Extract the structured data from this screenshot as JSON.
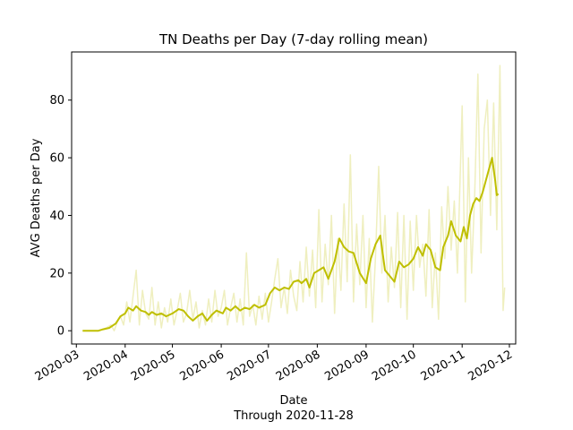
{
  "chart_data": {
    "type": "line",
    "title": "TN Deaths per Day (7-day rolling mean)",
    "xlabel": "Date",
    "xlabel_sub": "Through 2020-11-28",
    "ylabel": "AVG Deaths per Day",
    "xlim": [
      "2020-02-27",
      "2020-12-05"
    ],
    "ylim": [
      -4.6,
      96.7
    ],
    "grid": false,
    "x_ticks": [
      "2020-03",
      "2020-04",
      "2020-05",
      "2020-06",
      "2020-07",
      "2020-08",
      "2020-09",
      "2020-10",
      "2020-11",
      "2020-12"
    ],
    "y_ticks": [
      0,
      20,
      40,
      60,
      80
    ],
    "colors": {
      "daily": "#bfbf00",
      "rolling": "#bfbf00"
    },
    "series": [
      {
        "role": "daily",
        "opacity": 0.25,
        "points": [
          [
            "2020-03-05",
            0
          ],
          [
            "2020-03-10",
            0
          ],
          [
            "2020-03-15",
            0
          ],
          [
            "2020-03-20",
            1
          ],
          [
            "2020-03-23",
            2
          ],
          [
            "2020-03-25",
            0
          ],
          [
            "2020-03-27",
            3
          ],
          [
            "2020-03-29",
            5
          ],
          [
            "2020-03-31",
            2
          ],
          [
            "2020-04-02",
            10
          ],
          [
            "2020-04-04",
            3
          ],
          [
            "2020-04-06",
            12
          ],
          [
            "2020-04-08",
            21
          ],
          [
            "2020-04-10",
            2
          ],
          [
            "2020-04-12",
            14
          ],
          [
            "2020-04-14",
            6
          ],
          [
            "2020-04-16",
            4
          ],
          [
            "2020-04-18",
            15
          ],
          [
            "2020-04-20",
            2
          ],
          [
            "2020-04-22",
            10
          ],
          [
            "2020-04-24",
            1
          ],
          [
            "2020-04-26",
            8
          ],
          [
            "2020-04-28",
            3
          ],
          [
            "2020-04-30",
            11
          ],
          [
            "2020-05-02",
            2
          ],
          [
            "2020-05-04",
            7
          ],
          [
            "2020-05-06",
            13
          ],
          [
            "2020-05-08",
            3
          ],
          [
            "2020-05-10",
            6
          ],
          [
            "2020-05-12",
            14
          ],
          [
            "2020-05-14",
            4
          ],
          [
            "2020-05-16",
            10
          ],
          [
            "2020-05-18",
            1
          ],
          [
            "2020-05-20",
            7
          ],
          [
            "2020-05-22",
            2
          ],
          [
            "2020-05-24",
            11
          ],
          [
            "2020-05-26",
            3
          ],
          [
            "2020-05-28",
            14
          ],
          [
            "2020-05-30",
            5
          ],
          [
            "2020-06-01",
            8
          ],
          [
            "2020-06-03",
            14
          ],
          [
            "2020-06-05",
            2
          ],
          [
            "2020-06-07",
            8
          ],
          [
            "2020-06-09",
            13
          ],
          [
            "2020-06-11",
            3
          ],
          [
            "2020-06-13",
            11
          ],
          [
            "2020-06-15",
            2
          ],
          [
            "2020-06-17",
            27
          ],
          [
            "2020-06-19",
            5
          ],
          [
            "2020-06-21",
            9
          ],
          [
            "2020-06-23",
            2
          ],
          [
            "2020-06-25",
            12
          ],
          [
            "2020-06-27",
            4
          ],
          [
            "2020-06-29",
            13
          ],
          [
            "2020-07-01",
            3
          ],
          [
            "2020-07-03",
            10
          ],
          [
            "2020-07-05",
            18
          ],
          [
            "2020-07-07",
            25
          ],
          [
            "2020-07-09",
            8
          ],
          [
            "2020-07-11",
            15
          ],
          [
            "2020-07-13",
            6
          ],
          [
            "2020-07-15",
            21
          ],
          [
            "2020-07-17",
            12
          ],
          [
            "2020-07-19",
            7
          ],
          [
            "2020-07-21",
            24
          ],
          [
            "2020-07-23",
            10
          ],
          [
            "2020-07-25",
            29
          ],
          [
            "2020-07-27",
            12
          ],
          [
            "2020-07-29",
            28
          ],
          [
            "2020-07-31",
            8
          ],
          [
            "2020-08-02",
            42
          ],
          [
            "2020-08-04",
            10
          ],
          [
            "2020-08-06",
            30
          ],
          [
            "2020-08-08",
            16
          ],
          [
            "2020-08-10",
            40
          ],
          [
            "2020-08-12",
            6
          ],
          [
            "2020-08-14",
            32
          ],
          [
            "2020-08-16",
            14
          ],
          [
            "2020-08-18",
            44
          ],
          [
            "2020-08-20",
            17
          ],
          [
            "2020-08-22",
            61
          ],
          [
            "2020-08-24",
            10
          ],
          [
            "2020-08-26",
            37
          ],
          [
            "2020-08-28",
            16
          ],
          [
            "2020-08-30",
            40
          ],
          [
            "2020-09-01",
            8
          ],
          [
            "2020-09-03",
            32
          ],
          [
            "2020-09-05",
            3
          ],
          [
            "2020-09-07",
            26
          ],
          [
            "2020-09-09",
            57
          ],
          [
            "2020-09-11",
            20
          ],
          [
            "2020-09-13",
            40
          ],
          [
            "2020-09-15",
            10
          ],
          [
            "2020-09-17",
            29
          ],
          [
            "2020-09-19",
            15
          ],
          [
            "2020-09-21",
            41
          ],
          [
            "2020-09-23",
            8
          ],
          [
            "2020-09-25",
            40
          ],
          [
            "2020-09-27",
            4
          ],
          [
            "2020-09-29",
            38
          ],
          [
            "2020-10-01",
            14
          ],
          [
            "2020-10-03",
            40
          ],
          [
            "2020-10-05",
            22
          ],
          [
            "2020-10-07",
            30
          ],
          [
            "2020-10-09",
            12
          ],
          [
            "2020-10-11",
            42
          ],
          [
            "2020-10-13",
            8
          ],
          [
            "2020-10-15",
            27
          ],
          [
            "2020-10-17",
            4
          ],
          [
            "2020-10-19",
            43
          ],
          [
            "2020-10-21",
            25
          ],
          [
            "2020-10-23",
            50
          ],
          [
            "2020-10-25",
            28
          ],
          [
            "2020-10-27",
            45
          ],
          [
            "2020-10-29",
            20
          ],
          [
            "2020-11-01",
            78
          ],
          [
            "2020-11-03",
            10
          ],
          [
            "2020-11-05",
            60
          ],
          [
            "2020-11-07",
            20
          ],
          [
            "2020-11-09",
            48
          ],
          [
            "2020-11-11",
            89
          ],
          [
            "2020-11-13",
            27
          ],
          [
            "2020-11-15",
            70
          ],
          [
            "2020-11-17",
            80
          ],
          [
            "2020-11-19",
            40
          ],
          [
            "2020-11-21",
            79
          ],
          [
            "2020-11-23",
            35
          ],
          [
            "2020-11-25",
            92
          ],
          [
            "2020-11-27",
            7
          ],
          [
            "2020-11-28",
            15
          ]
        ]
      },
      {
        "role": "rolling",
        "opacity": 1,
        "points": [
          [
            "2020-03-05",
            0
          ],
          [
            "2020-03-10",
            0
          ],
          [
            "2020-03-15",
            0
          ],
          [
            "2020-03-18",
            0.5
          ],
          [
            "2020-03-22",
            1
          ],
          [
            "2020-03-26",
            2.5
          ],
          [
            "2020-03-29",
            5
          ],
          [
            "2020-04-01",
            6
          ],
          [
            "2020-04-03",
            8
          ],
          [
            "2020-04-06",
            7
          ],
          [
            "2020-04-08",
            8.5
          ],
          [
            "2020-04-11",
            7
          ],
          [
            "2020-04-14",
            6.5
          ],
          [
            "2020-04-16",
            5.5
          ],
          [
            "2020-04-18",
            6.5
          ],
          [
            "2020-04-21",
            5.5
          ],
          [
            "2020-04-24",
            6
          ],
          [
            "2020-04-27",
            5
          ],
          [
            "2020-05-01",
            6
          ],
          [
            "2020-05-05",
            7.5
          ],
          [
            "2020-05-08",
            7
          ],
          [
            "2020-05-11",
            5
          ],
          [
            "2020-05-14",
            3.5
          ],
          [
            "2020-05-17",
            5
          ],
          [
            "2020-05-20",
            6
          ],
          [
            "2020-05-23",
            3.5
          ],
          [
            "2020-05-26",
            5.5
          ],
          [
            "2020-05-29",
            7
          ],
          [
            "2020-06-02",
            6
          ],
          [
            "2020-06-04",
            8
          ],
          [
            "2020-06-07",
            7
          ],
          [
            "2020-06-10",
            8.5
          ],
          [
            "2020-06-13",
            7
          ],
          [
            "2020-06-16",
            8
          ],
          [
            "2020-06-19",
            7.5
          ],
          [
            "2020-06-22",
            9
          ],
          [
            "2020-06-25",
            8
          ],
          [
            "2020-06-29",
            9
          ],
          [
            "2020-07-02",
            13
          ],
          [
            "2020-07-05",
            15
          ],
          [
            "2020-07-08",
            14
          ],
          [
            "2020-07-11",
            15
          ],
          [
            "2020-07-14",
            14.5
          ],
          [
            "2020-07-17",
            17
          ],
          [
            "2020-07-20",
            17.5
          ],
          [
            "2020-07-22",
            16.5
          ],
          [
            "2020-07-25",
            18
          ],
          [
            "2020-07-27",
            15
          ],
          [
            "2020-07-30",
            20
          ],
          [
            "2020-08-02",
            21
          ],
          [
            "2020-08-05",
            22
          ],
          [
            "2020-08-08",
            18
          ],
          [
            "2020-08-12",
            24
          ],
          [
            "2020-08-15",
            32
          ],
          [
            "2020-08-18",
            29
          ],
          [
            "2020-08-21",
            27.5
          ],
          [
            "2020-08-24",
            27
          ],
          [
            "2020-08-28",
            20
          ],
          [
            "2020-09-01",
            16.5
          ],
          [
            "2020-09-04",
            25
          ],
          [
            "2020-09-07",
            30
          ],
          [
            "2020-09-10",
            33
          ],
          [
            "2020-09-13",
            21
          ],
          [
            "2020-09-16",
            19
          ],
          [
            "2020-09-19",
            17
          ],
          [
            "2020-09-22",
            24
          ],
          [
            "2020-09-25",
            22
          ],
          [
            "2020-09-28",
            23
          ],
          [
            "2020-10-01",
            25
          ],
          [
            "2020-10-04",
            29
          ],
          [
            "2020-10-07",
            26
          ],
          [
            "2020-10-09",
            30
          ],
          [
            "2020-10-12",
            28
          ],
          [
            "2020-10-15",
            22
          ],
          [
            "2020-10-18",
            21
          ],
          [
            "2020-10-20",
            29
          ],
          [
            "2020-10-23",
            33
          ],
          [
            "2020-10-25",
            38
          ],
          [
            "2020-10-28",
            33
          ],
          [
            "2020-10-31",
            31
          ],
          [
            "2020-11-02",
            36
          ],
          [
            "2020-11-04",
            32
          ],
          [
            "2020-11-06",
            40
          ],
          [
            "2020-11-08",
            44
          ],
          [
            "2020-11-10",
            46
          ],
          [
            "2020-11-12",
            45
          ],
          [
            "2020-11-14",
            48
          ],
          [
            "2020-11-16",
            52
          ],
          [
            "2020-11-18",
            56
          ],
          [
            "2020-11-20",
            60
          ],
          [
            "2020-11-22",
            52
          ],
          [
            "2020-11-23",
            47
          ],
          [
            "2020-11-24",
            47.5
          ]
        ]
      }
    ]
  }
}
